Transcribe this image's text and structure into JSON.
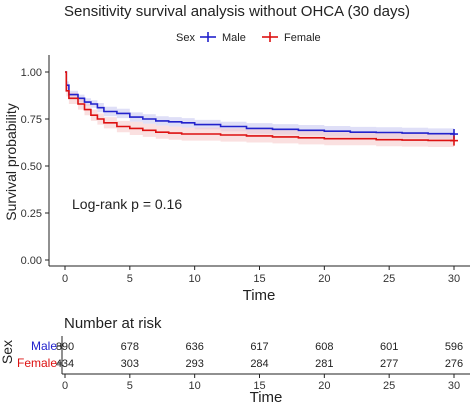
{
  "chart_data": [
    {
      "type": "line",
      "title": "Sensitivity survival analysis without OHCA (30 days)",
      "xlabel": "Time",
      "ylabel": "Survival probability",
      "xlim": [
        0,
        30
      ],
      "ylim": [
        0,
        1
      ],
      "x_ticks": [
        "0",
        "5",
        "10",
        "15",
        "20",
        "25",
        "30"
      ],
      "y_ticks": [
        "0.00",
        "0.25",
        "0.50",
        "0.75",
        "1.00"
      ],
      "grid": false,
      "legend": {
        "title": "Sex",
        "position": "top",
        "entries": [
          "Male",
          "Female"
        ]
      },
      "annotation": "Log-rank p = 0.16",
      "series": [
        {
          "name": "Male",
          "color": "#2222cc",
          "band_color": "#c9c9f2",
          "x": [
            0,
            0.1,
            0.3,
            1,
            1.5,
            2,
            2.5,
            3,
            4,
            5,
            6,
            7,
            8,
            9,
            10,
            12,
            14,
            16,
            18,
            20,
            22,
            24,
            26,
            28,
            30
          ],
          "y": [
            1.0,
            0.93,
            0.88,
            0.86,
            0.84,
            0.83,
            0.81,
            0.79,
            0.78,
            0.76,
            0.75,
            0.74,
            0.735,
            0.73,
            0.72,
            0.71,
            0.7,
            0.695,
            0.69,
            0.685,
            0.68,
            0.678,
            0.675,
            0.672,
            0.67
          ],
          "lower": [
            1.0,
            0.91,
            0.86,
            0.84,
            0.82,
            0.81,
            0.785,
            0.765,
            0.755,
            0.735,
            0.725,
            0.715,
            0.71,
            0.705,
            0.695,
            0.685,
            0.672,
            0.667,
            0.662,
            0.657,
            0.652,
            0.65,
            0.647,
            0.644,
            0.642
          ],
          "upper": [
            1.0,
            0.95,
            0.9,
            0.88,
            0.86,
            0.85,
            0.835,
            0.815,
            0.805,
            0.785,
            0.775,
            0.765,
            0.76,
            0.755,
            0.745,
            0.735,
            0.728,
            0.723,
            0.718,
            0.713,
            0.708,
            0.706,
            0.703,
            0.7,
            0.698
          ]
        },
        {
          "name": "Female",
          "color": "#dd1111",
          "band_color": "#f7cccc",
          "x": [
            0,
            0.1,
            0.3,
            1,
            1.5,
            2,
            2.5,
            3,
            4,
            5,
            6,
            7,
            8,
            9,
            10,
            12,
            14,
            16,
            18,
            20,
            22,
            24,
            26,
            28,
            30
          ],
          "y": [
            1.0,
            0.9,
            0.86,
            0.83,
            0.8,
            0.77,
            0.75,
            0.73,
            0.71,
            0.7,
            0.69,
            0.68,
            0.675,
            0.67,
            0.67,
            0.665,
            0.66,
            0.655,
            0.65,
            0.645,
            0.645,
            0.64,
            0.638,
            0.636,
            0.635
          ],
          "lower": [
            1.0,
            0.87,
            0.83,
            0.8,
            0.77,
            0.74,
            0.72,
            0.7,
            0.68,
            0.665,
            0.655,
            0.645,
            0.64,
            0.635,
            0.635,
            0.63,
            0.625,
            0.62,
            0.615,
            0.61,
            0.61,
            0.605,
            0.603,
            0.601,
            0.6
          ],
          "upper": [
            1.0,
            0.93,
            0.89,
            0.86,
            0.83,
            0.8,
            0.78,
            0.76,
            0.74,
            0.735,
            0.725,
            0.715,
            0.71,
            0.705,
            0.705,
            0.7,
            0.695,
            0.69,
            0.685,
            0.68,
            0.68,
            0.675,
            0.673,
            0.671,
            0.67
          ]
        }
      ]
    },
    {
      "type": "table",
      "title": "Number at risk",
      "xlabel": "Time",
      "ylabel": "Sex",
      "xlim": [
        0,
        30
      ],
      "x_ticks": [
        "0",
        "5",
        "10",
        "15",
        "20",
        "25",
        "30"
      ],
      "rows": [
        {
          "name": "Male",
          "color": "#2222cc",
          "values": [
            "890",
            "678",
            "636",
            "617",
            "608",
            "601",
            "596"
          ]
        },
        {
          "name": "Female",
          "color": "#dd1111",
          "values": [
            "434",
            "303",
            "293",
            "284",
            "281",
            "277",
            "276"
          ]
        }
      ]
    }
  ]
}
